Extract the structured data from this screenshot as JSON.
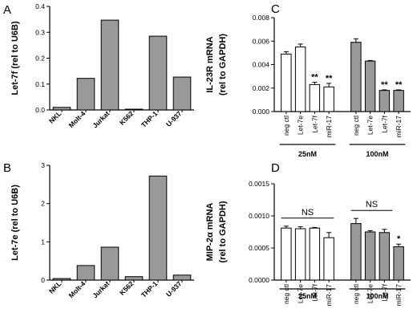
{
  "chart_data": [
    {
      "panel": "A",
      "type": "bar",
      "ylabel": "Let-7f (rel to U6B)",
      "ylim": [
        0,
        0.4
      ],
      "yticks": [
        "0.0",
        "0.1",
        "0.2",
        "0.3",
        "0.4"
      ],
      "categories": [
        "NKL",
        "Molt-4",
        "Jurkat",
        "K562",
        "THP-1",
        "U-937"
      ],
      "values": [
        0.01,
        0.122,
        0.347,
        0.003,
        0.285,
        0.127
      ],
      "bar_color": "#999999",
      "grid": false
    },
    {
      "panel": "B",
      "type": "bar",
      "ylabel": "Let-7e (rel to U6B)",
      "ylim": [
        0,
        3
      ],
      "yticks": [
        "0",
        "1",
        "2",
        "3"
      ],
      "categories": [
        "NKL",
        "Molt-4",
        "Jurkat",
        "K562",
        "THP-1",
        "U-937"
      ],
      "values": [
        0.04,
        0.38,
        0.86,
        0.09,
        2.72,
        0.13
      ],
      "bar_color": "#999999",
      "grid": false
    },
    {
      "panel": "C",
      "type": "bar",
      "ylabel": "IL-23R mRNA",
      "ylabel2": "(rel to GAPDH)",
      "ylim": [
        0,
        0.008
      ],
      "yticks": [
        "0.000",
        "0.002",
        "0.004",
        "0.006",
        "0.008"
      ],
      "categories": [
        "neg ctl",
        "Let-7e",
        "Let-7f",
        "miR-17",
        "neg ctl",
        "Let-7e",
        "Let-7f",
        "miR-17"
      ],
      "values": [
        0.0049,
        0.0055,
        0.0023,
        0.0021,
        0.0059,
        0.0043,
        0.0018,
        0.0018
      ],
      "errors": [
        0.0002,
        0.00025,
        0.0002,
        0.0003,
        0.0003,
        5e-05,
        5e-05,
        5e-05
      ],
      "significance": [
        "",
        "",
        "**",
        "**",
        "",
        "",
        "**",
        "**"
      ],
      "groups": [
        {
          "label": "25nM",
          "color": "#ffffff"
        },
        {
          "label": "100nM",
          "color": "#999999"
        }
      ],
      "grid": false
    },
    {
      "panel": "D",
      "type": "bar",
      "ylabel": "MIP-2α mRNA",
      "ylabel2": "(rel to GAPDH)",
      "ylim": [
        0,
        0.0015
      ],
      "yticks": [
        "0.0000",
        "0.0005",
        "0.0010",
        "0.0015"
      ],
      "categories": [
        "neg ctl",
        "Let-7e",
        "Let-7f",
        "miR-17",
        "neg ctl",
        "Let-7e",
        "Let-7f",
        "miR-17"
      ],
      "values": [
        0.00081,
        0.0008,
        0.00081,
        0.00066,
        0.00088,
        0.00075,
        0.00074,
        0.00052
      ],
      "errors": [
        3e-05,
        3e-05,
        1e-05,
        8e-05,
        8e-05,
        2e-05,
        5e-05,
        4e-05
      ],
      "significance": [
        "",
        "",
        "",
        "",
        "",
        "",
        "",
        "*"
      ],
      "group_annotations": [
        "NS",
        "NS"
      ],
      "groups": [
        {
          "label": "25nM",
          "color": "#ffffff"
        },
        {
          "label": "100nM",
          "color": "#999999"
        }
      ],
      "grid": false
    }
  ]
}
